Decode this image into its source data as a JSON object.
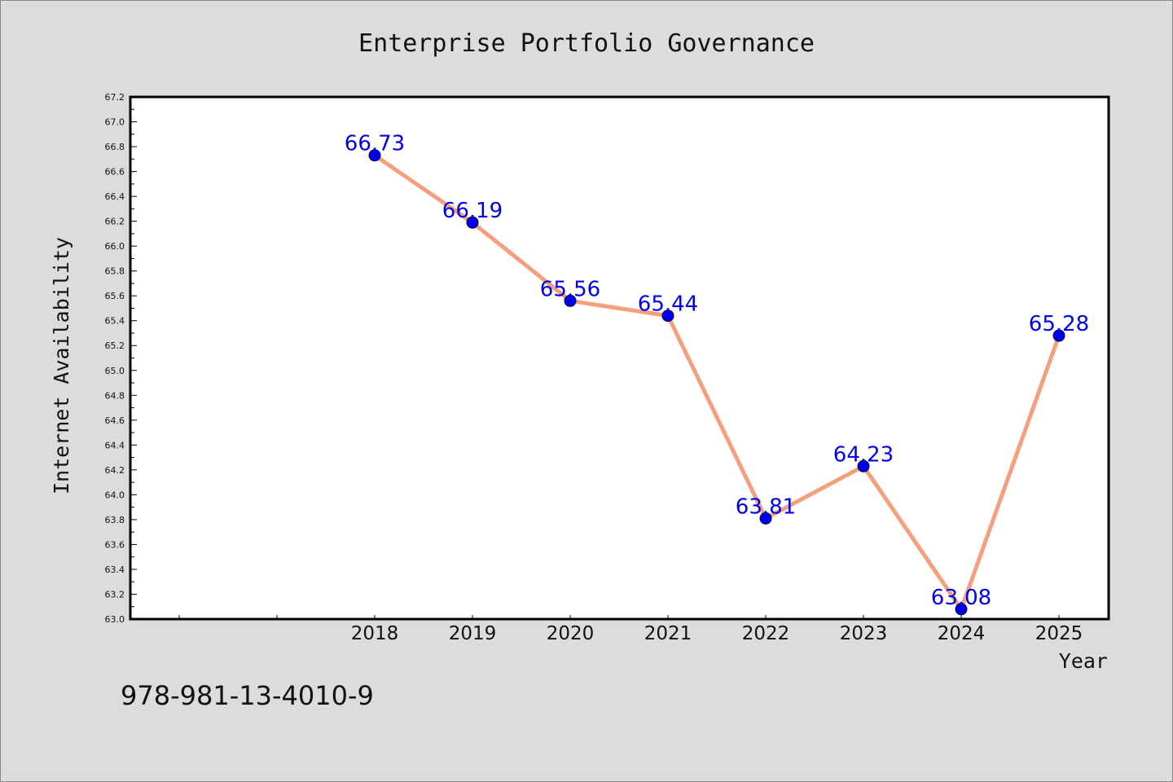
{
  "chart_data": {
    "type": "line",
    "title": "Enterprise Portfolio Governance",
    "xlabel": "Year",
    "ylabel": "Internet Availability",
    "categories": [
      "2018",
      "2019",
      "2020",
      "2021",
      "2022",
      "2023",
      "2024",
      "2025"
    ],
    "series": [
      {
        "values": [
          66.73,
          66.19,
          65.56,
          65.44,
          63.81,
          64.23,
          63.08,
          65.28
        ]
      }
    ],
    "data_labels": [
      "66.73",
      "66.19",
      "65.56",
      "65.44",
      "63.81",
      "64.23",
      "63.08",
      "65.28"
    ],
    "ylim": [
      63.0,
      67.2
    ],
    "y_major_step": 0.2,
    "yticks": [
      "63.0",
      "63.2",
      "63.4",
      "63.6",
      "63.8",
      "64.0",
      "64.2",
      "64.4",
      "64.6",
      "64.8",
      "65.0",
      "65.2",
      "65.4",
      "65.6",
      "65.8",
      "66.0",
      "66.2",
      "66.4",
      "66.6",
      "66.8",
      "67.0",
      "67.2"
    ],
    "x_slots": 10,
    "x_first_category_slot": 2,
    "grid": false,
    "legend": "none",
    "colors": {
      "line": "#f4a07c",
      "marker": "#0000ee",
      "data_label": "#0000ee",
      "background": "#dcdcdc",
      "plot_background": "#ffffff",
      "axis": "#000000"
    }
  },
  "footer": {
    "isbn": "978-981-13-4010-9"
  }
}
